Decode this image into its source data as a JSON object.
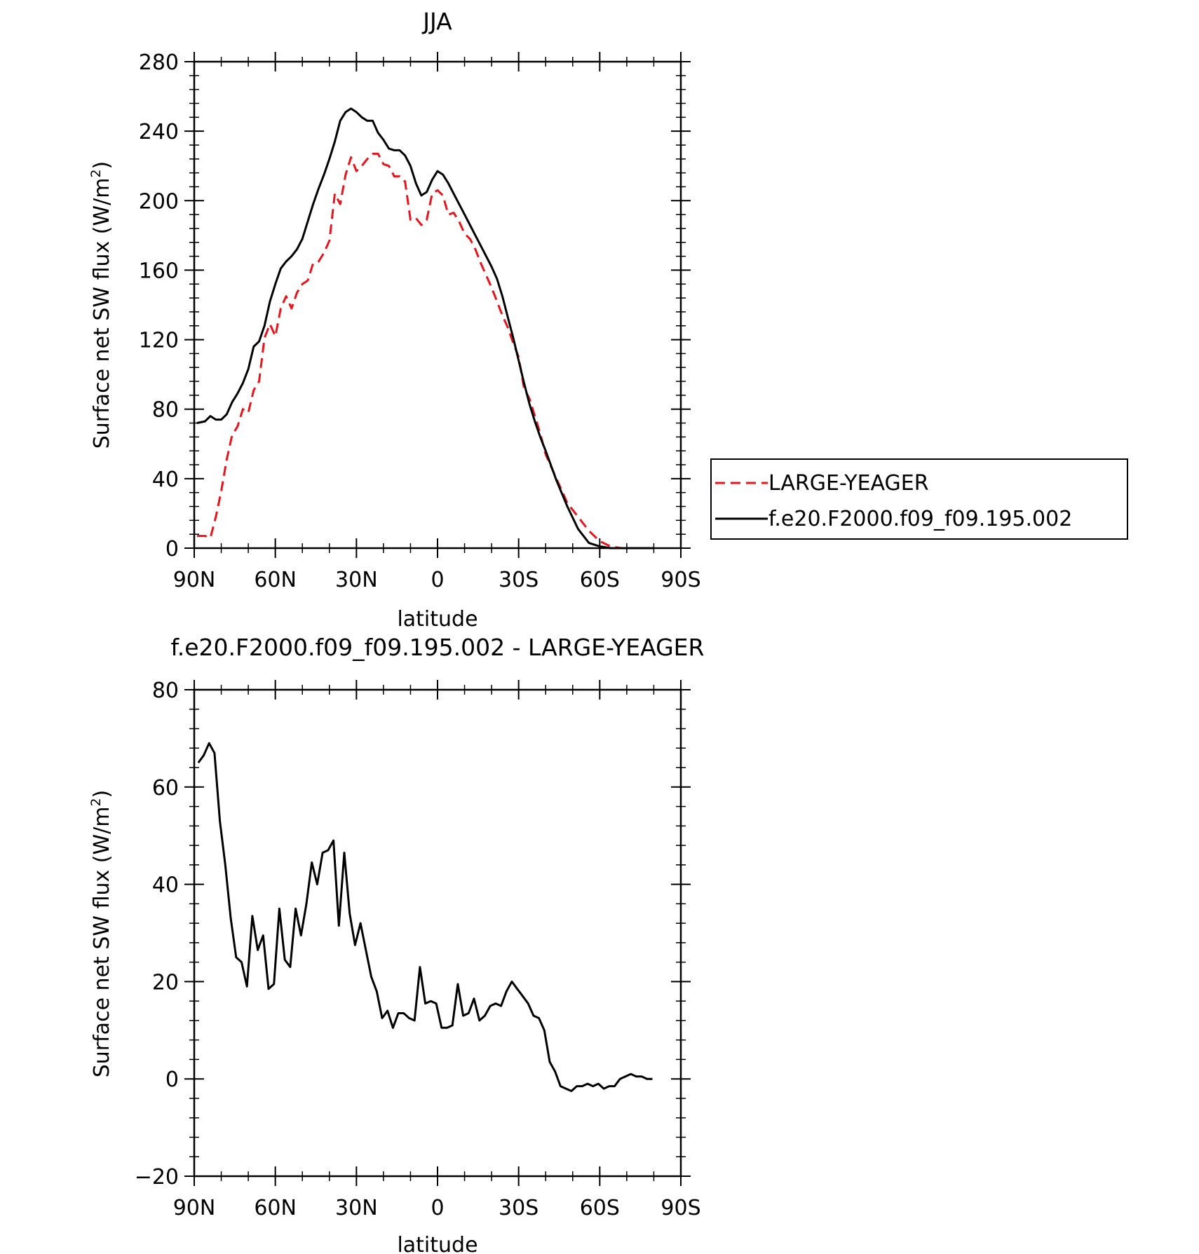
{
  "chart_data": [
    {
      "type": "line",
      "title": "JJA",
      "xlabel": "latitude",
      "ylabel": "Surface net SW flux (W/m",
      "ylabel_superscript": "2",
      "ylabel_suffix": ")",
      "xlim": [
        90,
        -90
      ],
      "ylim": [
        0,
        280
      ],
      "x_ticks": [
        90,
        60,
        30,
        0,
        -30,
        -60,
        -90
      ],
      "x_tick_labels": [
        "90N",
        "60N",
        "30N",
        "0",
        "30S",
        "60S",
        "90S"
      ],
      "y_ticks": [
        0,
        40,
        80,
        120,
        160,
        200,
        240,
        280
      ],
      "y_tick_labels": [
        "0",
        "40",
        "80",
        "120",
        "160",
        "200",
        "240",
        "280"
      ],
      "legend_position": "right",
      "series": [
        {
          "name": "LARGE-YEAGER",
          "color": "#e8141c",
          "dash": "dashed",
          "x": [
            89,
            86,
            84,
            82,
            80,
            78,
            76,
            74,
            72,
            70,
            68,
            66,
            64,
            62,
            60,
            58,
            56,
            54,
            52,
            50,
            48,
            46,
            44,
            42,
            40,
            38,
            36,
            34,
            32,
            30,
            28,
            26,
            24,
            22,
            20,
            18,
            16,
            14,
            12,
            10,
            8,
            6,
            4,
            2,
            0,
            -2,
            -4,
            -6,
            -8,
            -10,
            -12,
            -14,
            -16,
            -18,
            -20,
            -22,
            -24,
            -26,
            -28,
            -30,
            -32,
            -34,
            -36,
            -38,
            -40,
            -44,
            -48,
            -52,
            -56,
            -60,
            -64,
            -68,
            -72,
            -76,
            -80
          ],
          "y": [
            7,
            7,
            6,
            18,
            33,
            51,
            65,
            70,
            80,
            78,
            91,
            96,
            121,
            129,
            122,
            138,
            145,
            138,
            147,
            152,
            154,
            164,
            165,
            170,
            177,
            204,
            198,
            215,
            225,
            217,
            220,
            224,
            227,
            227,
            221,
            220,
            214,
            214,
            211,
            189,
            190,
            186,
            189,
            204,
            206,
            203,
            192,
            193,
            188,
            181,
            178,
            172,
            164,
            157,
            150,
            142,
            134,
            127,
            118,
            110,
            92,
            86,
            76,
            66,
            54,
            40,
            26,
            18,
            10,
            4,
            1,
            0,
            0,
            0,
            0
          ]
        },
        {
          "name": "f.e20.F2000.f09_f09.195.002",
          "color": "#000000",
          "dash": "solid",
          "x": [
            89,
            86,
            84,
            82,
            80,
            78,
            76,
            74,
            72,
            70,
            68,
            66,
            64,
            62,
            60,
            58,
            56,
            54,
            52,
            50,
            48,
            46,
            44,
            42,
            40,
            38,
            36,
            34,
            32,
            30,
            28,
            26,
            24,
            22,
            20,
            18,
            16,
            14,
            12,
            10,
            8,
            6,
            4,
            2,
            0,
            -2,
            -4,
            -6,
            -8,
            -10,
            -12,
            -14,
            -16,
            -18,
            -20,
            -22,
            -24,
            -26,
            -28,
            -30,
            -32,
            -34,
            -36,
            -38,
            -40,
            -44,
            -48,
            -52,
            -56,
            -60,
            -64,
            -68,
            -72,
            -76,
            -80
          ],
          "y": [
            72,
            73,
            76,
            74,
            74,
            77,
            84,
            89,
            95,
            103,
            116,
            119,
            128,
            142,
            152,
            161,
            165,
            168,
            172,
            178,
            188,
            198,
            207,
            215,
            224,
            234,
            246,
            251,
            253,
            251,
            248,
            246,
            246,
            239,
            235,
            230,
            229,
            229,
            226,
            220,
            210,
            203,
            205,
            212,
            217,
            215,
            210,
            204,
            198,
            192,
            186,
            180,
            174,
            168,
            162,
            155,
            145,
            133,
            121,
            108,
            95,
            83,
            73,
            64,
            56,
            39,
            24,
            11,
            3,
            1,
            0,
            0,
            0,
            0,
            0
          ]
        }
      ]
    },
    {
      "type": "line",
      "title": "f.e20.F2000.f09_f09.195.002 - LARGE-YEAGER",
      "xlabel": "latitude",
      "ylabel": "Surface net SW flux (W/m",
      "ylabel_superscript": "2",
      "ylabel_suffix": ")",
      "xlim": [
        90,
        -90
      ],
      "ylim": [
        -20,
        80
      ],
      "x_ticks": [
        90,
        60,
        30,
        0,
        -30,
        -60,
        -90
      ],
      "x_tick_labels": [
        "90N",
        "60N",
        "30N",
        "0",
        "30S",
        "60S",
        "90S"
      ],
      "y_ticks": [
        -20,
        0,
        20,
        40,
        60,
        80
      ],
      "y_tick_labels": [
        "-20",
        "0",
        "20",
        "40",
        "60",
        "80"
      ],
      "series": [
        {
          "color": "#000000",
          "dash": "solid",
          "x": [
            88.5,
            86.5,
            84.5,
            82.5,
            80.5,
            78.5,
            76.5,
            74.5,
            72.5,
            70.5,
            68.5,
            66.5,
            64.5,
            62.5,
            60.5,
            58.5,
            56.5,
            54.5,
            52.5,
            50.5,
            48.5,
            46.5,
            44.5,
            42.5,
            40.5,
            38.5,
            36.5,
            34.5,
            32.5,
            30.5,
            28.5,
            26.5,
            24.5,
            22.5,
            20.5,
            18.5,
            16.5,
            14.5,
            12.5,
            10.5,
            8.5,
            6.5,
            4.5,
            2.5,
            0.5,
            -1.5,
            -3.5,
            -5.5,
            -7.5,
            -9.5,
            -11.5,
            -13.5,
            -15.5,
            -17.5,
            -19.5,
            -21.5,
            -23.5,
            -25.5,
            -27.5,
            -29.5,
            -31.5,
            -33.5,
            -35.5,
            -37.5,
            -39.5,
            -41.5,
            -43.5,
            -45.5,
            -47.5,
            -49.5,
            -51.5,
            -53.5,
            -55.5,
            -57.5,
            -59.5,
            -61.5,
            -63.5,
            -65.5,
            -67.5,
            -69.5,
            -71.5,
            -73.5,
            -75.5,
            -77.5,
            -79.5
          ],
          "y": [
            65,
            66.5,
            69,
            67,
            53,
            44,
            33,
            25,
            24,
            19,
            33.5,
            26.5,
            29.5,
            18.5,
            19.5,
            35,
            24.5,
            23,
            35,
            29.5,
            36,
            44.5,
            40,
            46.5,
            47,
            49,
            31.5,
            46.5,
            34,
            27.5,
            32,
            26.5,
            21,
            18,
            12.5,
            14,
            10.5,
            13.5,
            13.5,
            12.5,
            12,
            23,
            15.5,
            16,
            15.5,
            10.5,
            10.5,
            11,
            19.5,
            13,
            13.5,
            16.5,
            12,
            13,
            15,
            15.5,
            15,
            18,
            20,
            18.5,
            17,
            15.5,
            13,
            12.5,
            10,
            3.5,
            1.5,
            -1.5,
            -2,
            -2.5,
            -1.5,
            -1.5,
            -1,
            -1.5,
            -1,
            -2,
            -1.5,
            -1.5,
            0,
            0.5,
            1,
            0.5,
            0.5,
            0,
            0
          ]
        }
      ]
    }
  ]
}
